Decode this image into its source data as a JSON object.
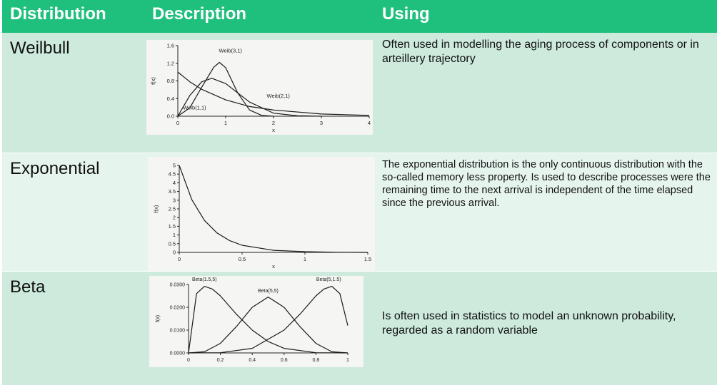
{
  "header": {
    "distribution": "Distribution",
    "description": "Description",
    "using": "Using"
  },
  "rows": [
    {
      "name": "Weilbull",
      "using": "Often used in modelling the aging process of components or in arteillery trajectory"
    },
    {
      "name": "Exponential",
      "using": "The exponential distribution is the only continuous distribution with the so-called memory less property. Is used to describe processes were  the remaining time to the next arrival is independent of the time elapsed since the previous arrival."
    },
    {
      "name": "Beta",
      "using": "Is often used in statistics to model an unknown probability, regarded as a random variable"
    }
  ],
  "chart_data": [
    {
      "type": "line",
      "xlabel": "x",
      "ylabel": "f(x)",
      "xlim": [
        0,
        4
      ],
      "ylim": [
        0,
        1.6
      ],
      "x_ticks": [
        "0",
        "1",
        "2",
        "3",
        "4"
      ],
      "y_ticks": [
        "0.0",
        "0.4",
        "0.8",
        "1.2",
        "1.6"
      ],
      "series": [
        {
          "name": "Weib(1,1)",
          "x": [
            0,
            0.25,
            0.5,
            1,
            1.5,
            2,
            3,
            4
          ],
          "y": [
            1.0,
            0.78,
            0.61,
            0.37,
            0.22,
            0.14,
            0.05,
            0.02
          ]
        },
        {
          "name": "Weib(2,1)",
          "x": [
            0,
            0.25,
            0.5,
            0.71,
            1,
            1.5,
            2,
            2.5,
            3
          ],
          "y": [
            0,
            0.47,
            0.78,
            0.86,
            0.74,
            0.32,
            0.07,
            0.01,
            0
          ]
        },
        {
          "name": "Weib(3,1)",
          "x": [
            0,
            0.25,
            0.5,
            0.75,
            0.87,
            1,
            1.25,
            1.5,
            1.75,
            2
          ],
          "y": [
            0,
            0.19,
            0.66,
            1.11,
            1.22,
            1.1,
            0.53,
            0.14,
            0.02,
            0
          ]
        }
      ]
    },
    {
      "type": "line",
      "xlabel": "x",
      "ylabel": "f(x)",
      "xlim": [
        0,
        1.5
      ],
      "ylim": [
        0,
        5
      ],
      "x_ticks": [
        "0",
        "0.5",
        "1",
        "1.5"
      ],
      "y_ticks": [
        "0",
        "0.5",
        "1",
        "1.5",
        "2",
        "2.5",
        "3",
        "3.5",
        "4",
        "4.5",
        "5"
      ],
      "series": [
        {
          "name": "",
          "x": [
            0,
            0.1,
            0.2,
            0.3,
            0.4,
            0.5,
            0.75,
            1.0,
            1.25,
            1.5
          ],
          "y": [
            5.0,
            3.03,
            1.84,
            1.12,
            0.68,
            0.41,
            0.12,
            0.04,
            0.01,
            0.0
          ]
        }
      ]
    },
    {
      "type": "line",
      "xlabel": "",
      "ylabel": "f(x)",
      "xlim": [
        0,
        1
      ],
      "ylim": [
        0,
        0.03
      ],
      "x_ticks": [
        "0",
        "0.2",
        "0.4",
        "0.6",
        "0.8",
        "1"
      ],
      "y_ticks": [
        "0.0000",
        "0.0100",
        "0.0200",
        "0.0300"
      ],
      "series": [
        {
          "name": "Beta(1.5,5)",
          "x": [
            0,
            0.05,
            0.1,
            0.15,
            0.2,
            0.3,
            0.4,
            0.5,
            0.6,
            0.8,
            1.0
          ],
          "y": [
            0,
            0.026,
            0.0292,
            0.028,
            0.025,
            0.017,
            0.01,
            0.005,
            0.002,
            0.0001,
            0
          ]
        },
        {
          "name": "Beta(5,5)",
          "x": [
            0,
            0.1,
            0.2,
            0.3,
            0.4,
            0.5,
            0.6,
            0.7,
            0.8,
            0.9,
            1.0
          ],
          "y": [
            0,
            0.0005,
            0.0042,
            0.0115,
            0.02,
            0.0245,
            0.02,
            0.0115,
            0.0042,
            0.0005,
            0
          ]
        },
        {
          "name": "Beta(5,1.5)",
          "x": [
            0,
            0.2,
            0.4,
            0.6,
            0.7,
            0.8,
            0.85,
            0.9,
            0.95,
            1.0
          ],
          "y": [
            0,
            0.0001,
            0.002,
            0.01,
            0.017,
            0.025,
            0.028,
            0.0292,
            0.026,
            0.012
          ]
        }
      ],
      "series_labels": [
        "Beta(1.5,5)",
        "Beta(5,5)",
        "Beta(5,1.5)"
      ]
    }
  ]
}
